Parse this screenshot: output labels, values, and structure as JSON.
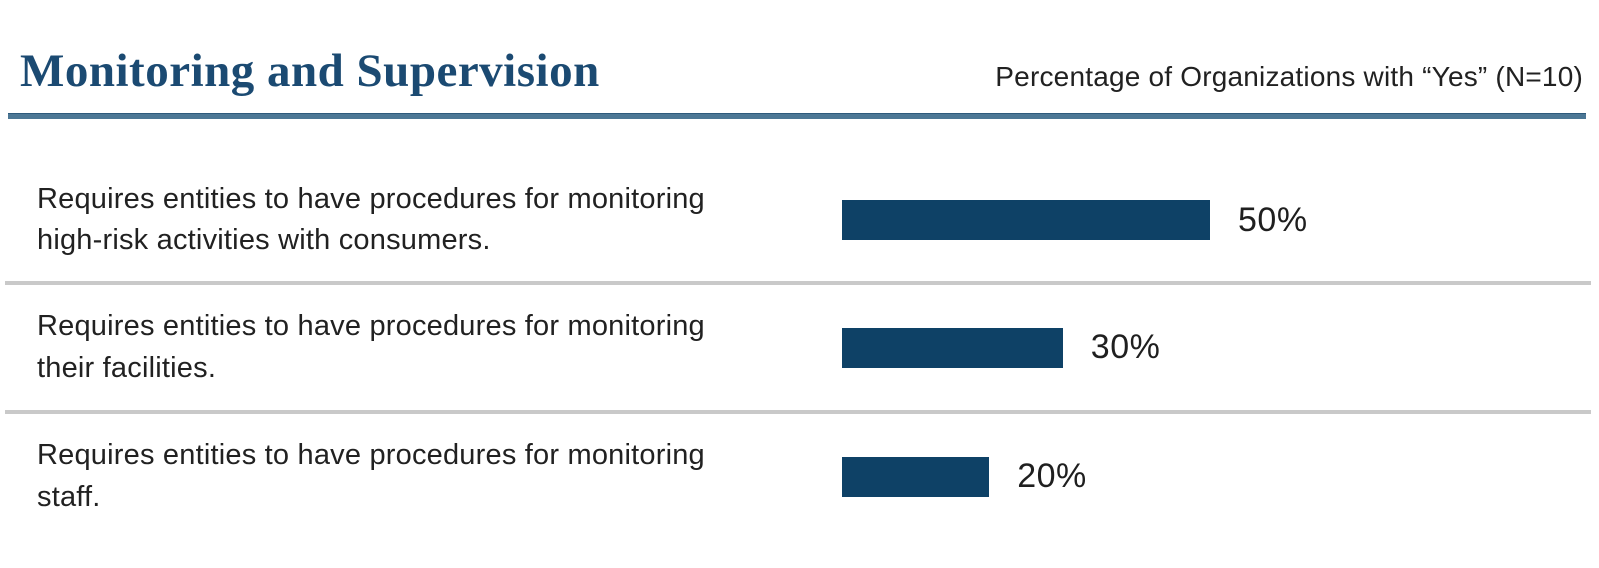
{
  "header": {
    "title": "Monitoring and Supervision",
    "subtitle": "Percentage of Organizations with “Yes” (N=10)"
  },
  "chart_data": {
    "type": "bar",
    "orientation": "horizontal",
    "title": "Monitoring and Supervision",
    "subtitle": "Percentage of Organizations with “Yes” (N=10)",
    "sample_size_note": "N=10",
    "unit": "%",
    "xlim": [
      0,
      100
    ],
    "grid": false,
    "legend": false,
    "categories": [
      "Requires entities to have procedures for monitoring high-risk activities with consumers.",
      "Requires entities to have procedures for monitoring their facilities.",
      "Requires entities to have procedures for monitoring staff."
    ],
    "values": [
      50,
      30,
      20
    ],
    "rows": [
      {
        "label": "Requires entities to have procedures for monitoring high-risk activities with consumers.",
        "value": 50,
        "value_label": "50%"
      },
      {
        "label": "Requires entities to have procedures for monitoring their facilities.",
        "value": 30,
        "value_label": "30%"
      },
      {
        "label": "Requires entities to have procedures for monitoring staff.",
        "value": 20,
        "value_label": "20%"
      }
    ],
    "colors": {
      "bar": "#0E4166",
      "title": "#1B4A72",
      "header_rule": "#4C7795",
      "divider": "#C9C9C9",
      "text": "#212121"
    }
  }
}
